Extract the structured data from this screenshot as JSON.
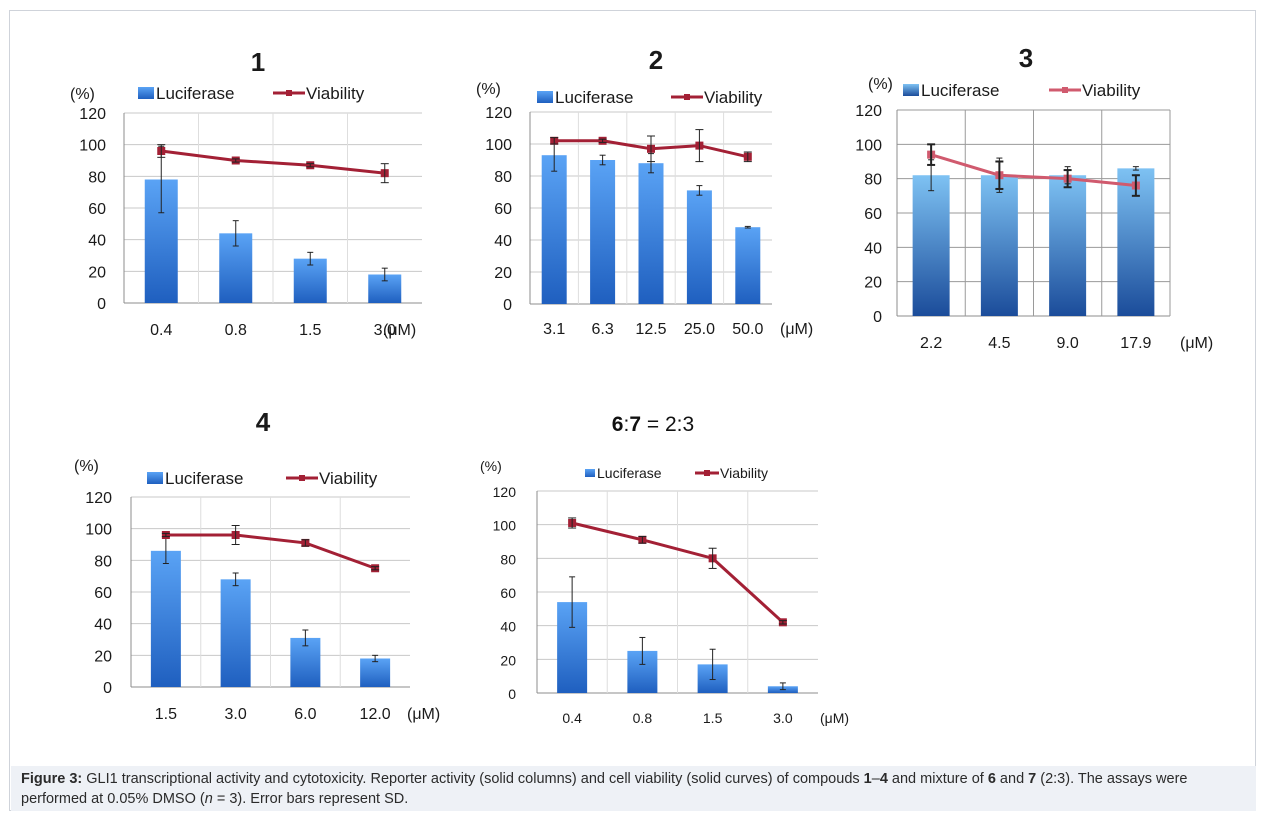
{
  "legend": {
    "bar": "Luciferase",
    "line": "Viability"
  },
  "unit_y": "(%)",
  "unit_x": "(μM)",
  "colors": {
    "bar_top": "#5aa3f5",
    "bar_bottom": "#1f5fbf",
    "line": "#a32035",
    "line_light": "#d05a6e",
    "grid": "#c8c8c8",
    "axis": "#8c8c8c"
  },
  "caption": {
    "label": "Figure 3:",
    "p1": " GLI1 transcriptional activity and cytotoxicity. Reporter activity (solid columns) and cell viability (solid curves) of compouds ",
    "c1": "1",
    "dash": "–",
    "c4": "4",
    "p2": " and mixture of ",
    "c6": "6",
    "and": " and ",
    "c7": "7",
    "p3": " (2:3). The assays were performed at 0.05% DMSO (",
    "n": "n",
    "p4": " = 3). Error bars represent SD."
  },
  "chart_data": [
    {
      "type": "bar",
      "title": "1",
      "categories": [
        "0.4",
        "0.8",
        "1.5",
        "3.0"
      ],
      "ylim": [
        0,
        120
      ],
      "yticks": [
        0,
        20,
        40,
        60,
        80,
        100,
        120
      ],
      "series": [
        {
          "name": "Luciferase",
          "kind": "bar",
          "values": [
            78,
            44,
            28,
            18
          ],
          "errors": [
            21,
            8,
            4,
            4
          ]
        },
        {
          "name": "Viability",
          "kind": "line",
          "values": [
            96,
            90,
            87,
            82
          ],
          "errors": [
            4,
            1,
            1,
            6
          ]
        }
      ]
    },
    {
      "type": "bar",
      "title": "2",
      "categories": [
        "3.1",
        "6.3",
        "12.5",
        "25.0",
        "50.0"
      ],
      "ylim": [
        0,
        120
      ],
      "yticks": [
        0,
        20,
        40,
        60,
        80,
        100,
        120
      ],
      "series": [
        {
          "name": "Luciferase",
          "kind": "bar",
          "values": [
            93,
            90,
            88,
            71,
            48
          ],
          "errors": [
            10,
            3,
            6,
            3,
            0.5
          ]
        },
        {
          "name": "Viability",
          "kind": "line",
          "values": [
            102,
            102,
            97,
            99,
            92
          ],
          "errors": [
            2,
            1,
            8,
            10,
            3
          ]
        }
      ]
    },
    {
      "type": "bar",
      "title": "3",
      "categories": [
        "2.2",
        "4.5",
        "9.0",
        "17.9"
      ],
      "ylim": [
        0,
        120
      ],
      "yticks": [
        0,
        20,
        40,
        60,
        80,
        100,
        120
      ],
      "series": [
        {
          "name": "Luciferase",
          "kind": "bar",
          "values": [
            82,
            82,
            82,
            86
          ],
          "errors": [
            9,
            10,
            5,
            1
          ]
        },
        {
          "name": "Viability",
          "kind": "line",
          "values": [
            94,
            82,
            80,
            76
          ],
          "errors": [
            6,
            8,
            5,
            6
          ]
        }
      ]
    },
    {
      "type": "bar",
      "title": "4",
      "categories": [
        "1.5",
        "3.0",
        "6.0",
        "12.0"
      ],
      "ylim": [
        0,
        120
      ],
      "yticks": [
        0,
        20,
        40,
        60,
        80,
        100,
        120
      ],
      "series": [
        {
          "name": "Luciferase",
          "kind": "bar",
          "values": [
            86,
            68,
            31,
            18
          ],
          "errors": [
            8,
            4,
            5,
            2
          ]
        },
        {
          "name": "Viability",
          "kind": "line",
          "values": [
            96,
            96,
            91,
            75
          ],
          "errors": [
            1,
            6,
            2,
            1
          ]
        }
      ]
    },
    {
      "type": "bar",
      "title": "6:7 = 2:3",
      "categories": [
        "0.4",
        "0.8",
        "1.5",
        "3.0"
      ],
      "ylim": [
        0,
        120
      ],
      "yticks": [
        0,
        20,
        40,
        60,
        80,
        100,
        120
      ],
      "series": [
        {
          "name": "Luciferase",
          "kind": "bar",
          "values": [
            54,
            25,
            17,
            4
          ],
          "errors": [
            15,
            8,
            9,
            2
          ]
        },
        {
          "name": "Viability",
          "kind": "line",
          "values": [
            101,
            91,
            80,
            42
          ],
          "errors": [
            3,
            2,
            6,
            1
          ]
        }
      ]
    }
  ]
}
